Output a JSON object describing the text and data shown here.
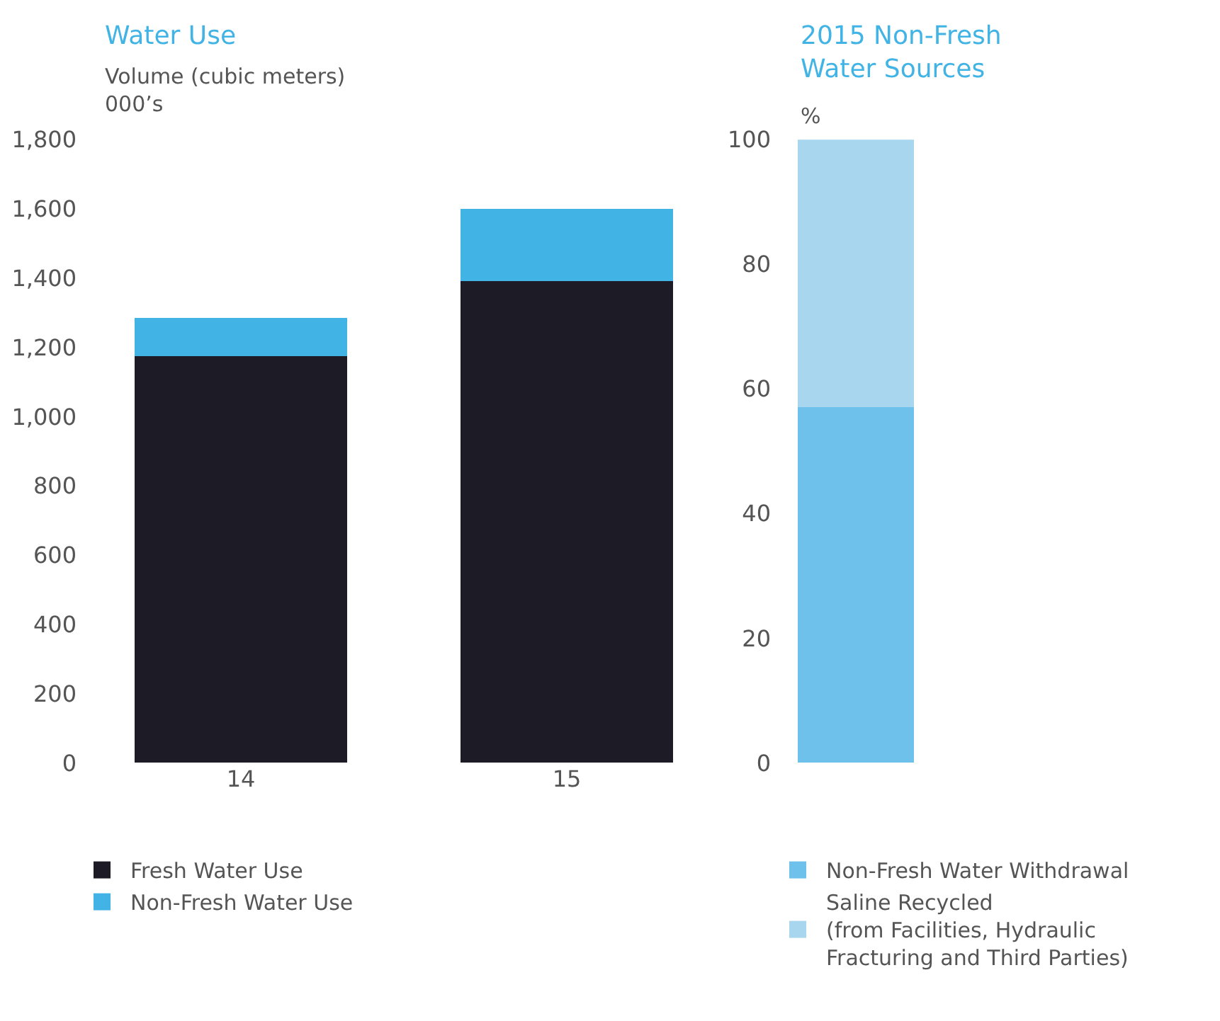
{
  "chart_data": [
    {
      "type": "bar",
      "title": "Water Use",
      "ylabel": "Volume (cubic meters)\n000’s",
      "categories": [
        "14",
        "15"
      ],
      "stacked": true,
      "legend": "bottom",
      "series": [
        {
          "name": "Fresh Water Use",
          "color": "#1c1b26",
          "values": [
            1175,
            1390
          ]
        },
        {
          "name": "Non-Fresh Water Use",
          "color": "#41b4e5",
          "values": [
            111,
            210
          ]
        }
      ],
      "ylim": [
        0,
        1800
      ],
      "yticks": [
        0,
        {
          "value": 200,
          "label": "200"
        },
        {
          "value": 400,
          "label": "400"
        },
        {
          "value": 600,
          "label": "600"
        },
        {
          "value": 800,
          "label": "800"
        },
        {
          "value": 1000,
          "label": "1,000"
        },
        {
          "value": 1200,
          "label": "1,200"
        },
        {
          "value": 1400,
          "label": "1,400"
        },
        {
          "value": 1600,
          "label": "1,600"
        },
        {
          "value": 1800,
          "label": "1,800"
        }
      ]
    },
    {
      "type": "bar",
      "title": "2015 Non-Fresh\nWater Sources",
      "ylabel": "%",
      "categories": [
        null
      ],
      "stacked": true,
      "legend": "bottom",
      "series": [
        {
          "name": "Non-Fresh Water Withdrawal",
          "color": "#6ec1ea",
          "values": [
            57
          ]
        },
        {
          "name": "Saline Recycled\n(from Facilities, Hydraulic\nFracturing and Third Parties)",
          "color": "#a9d6ef",
          "values": [
            43
          ]
        }
      ],
      "ylim": [
        0,
        100
      ],
      "yticks": [
        0,
        20,
        40,
        60,
        80,
        100
      ]
    }
  ]
}
